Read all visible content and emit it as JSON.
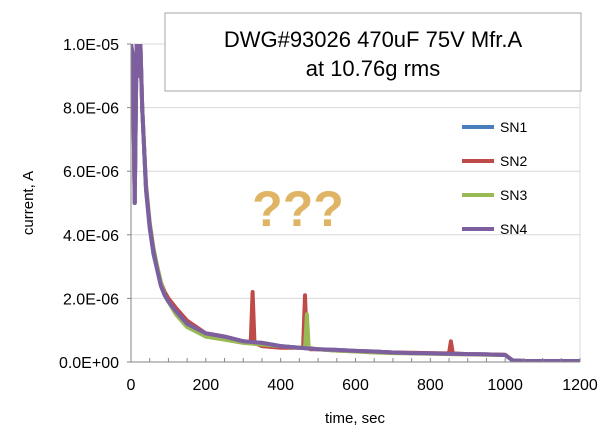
{
  "chart_data": {
    "type": "line",
    "title": "DWG#93026 470uF 75V Mfr.A",
    "subtitle": "at 10.76g rms",
    "xlabel": "time, sec",
    "ylabel": "current, A",
    "xlim": [
      0,
      1200
    ],
    "ylim": [
      0,
      1e-05
    ],
    "x_ticks": [
      0,
      200,
      400,
      600,
      800,
      1000,
      1200
    ],
    "x_tick_labels": [
      "0",
      "200",
      "400",
      "600",
      "800",
      "1000",
      "1200"
    ],
    "y_ticks": [
      0,
      2e-06,
      4e-06,
      6e-06,
      8e-06,
      1e-05
    ],
    "y_tick_labels": [
      "0.0E+00",
      "2.0E-06",
      "4.0E-06",
      "6.0E-06",
      "8.0E-06",
      "1.0E-05"
    ],
    "grid": "horizontal",
    "legend_position": "right",
    "annotation": "???",
    "series": [
      {
        "name": "SN1",
        "color": "#4a7ebb",
        "x": [
          0,
          5,
          10,
          15,
          20,
          25,
          30,
          40,
          50,
          60,
          70,
          80,
          90,
          100,
          120,
          150,
          200,
          250,
          300,
          350,
          400,
          450,
          500,
          550,
          600,
          650,
          700,
          750,
          800,
          850,
          900,
          950,
          1000,
          1020,
          1050,
          1100,
          1150,
          1200
        ],
        "y": [
          1e-05,
          9.6e-06,
          5e-06,
          1e-05,
          9e-06,
          1e-05,
          8e-06,
          5.4e-06,
          4.2e-06,
          3.4e-06,
          2.9e-06,
          2.4e-06,
          2.1e-06,
          1.9e-06,
          1.6e-06,
          1.2e-06,
          9e-07,
          8e-07,
          6.5e-07,
          6e-07,
          5e-07,
          4.5e-07,
          4e-07,
          3.8e-07,
          3.5e-07,
          3.3e-07,
          3e-07,
          2.8e-07,
          2.7e-07,
          2.6e-07,
          2.5e-07,
          2.4e-07,
          2.2e-07,
          5e-08,
          3e-08,
          3e-08,
          3e-08,
          3e-08
        ]
      },
      {
        "name": "SN2",
        "color": "#be4b48",
        "x": [
          0,
          5,
          10,
          15,
          20,
          25,
          30,
          40,
          50,
          60,
          70,
          80,
          90,
          100,
          120,
          150,
          200,
          250,
          300,
          320,
          325,
          330,
          340,
          350,
          400,
          450,
          460,
          465,
          470,
          480,
          500,
          550,
          600,
          650,
          700,
          750,
          800,
          850,
          855,
          860,
          900,
          950,
          1000,
          1020,
          1050,
          1100,
          1150,
          1200
        ],
        "y": [
          1e-05,
          9.6e-06,
          5e-06,
          1e-05,
          9e-06,
          1e-05,
          8e-06,
          5.5e-06,
          4.3e-06,
          3.5e-06,
          3e-06,
          2.5e-06,
          2.2e-06,
          2e-06,
          1.7e-06,
          1.3e-06,
          9e-07,
          8e-07,
          6.5e-07,
          6e-07,
          2.2e-06,
          6e-07,
          5.5e-07,
          5e-07,
          4.5e-07,
          4.5e-07,
          4.5e-07,
          2.1e-06,
          4.5e-07,
          4e-07,
          4e-07,
          3.6e-07,
          3.4e-07,
          3.2e-07,
          3e-07,
          2.9e-07,
          2.8e-07,
          2.7e-07,
          6.5e-07,
          2.7e-07,
          2.5e-07,
          2.4e-07,
          2.3e-07,
          5e-08,
          3e-08,
          3e-08,
          3e-08,
          3e-08
        ]
      },
      {
        "name": "SN3",
        "color": "#98b954",
        "x": [
          0,
          5,
          10,
          15,
          20,
          25,
          30,
          40,
          50,
          60,
          70,
          80,
          90,
          100,
          120,
          150,
          200,
          250,
          300,
          350,
          400,
          450,
          465,
          470,
          475,
          500,
          550,
          600,
          650,
          700,
          750,
          800,
          850,
          900,
          950,
          1000,
          1020,
          1050,
          1100,
          1150,
          1200
        ],
        "y": [
          1e-05,
          9.6e-06,
          5e-06,
          1e-05,
          9e-06,
          1e-05,
          8e-06,
          5.6e-06,
          4.4e-06,
          3.6e-06,
          3e-06,
          2.5e-06,
          2.1e-06,
          1.9e-06,
          1.5e-06,
          1.1e-06,
          8e-07,
          7e-07,
          6e-07,
          5.5e-07,
          5e-07,
          4.5e-07,
          4.5e-07,
          1.5e-06,
          4.5e-07,
          4e-07,
          3.6e-07,
          3.3e-07,
          3e-07,
          2.8e-07,
          2.7e-07,
          2.6e-07,
          2.5e-07,
          2.4e-07,
          2.3e-07,
          2.2e-07,
          5e-08,
          3e-08,
          3e-08,
          3e-08,
          3e-08
        ]
      },
      {
        "name": "SN4",
        "color": "#7d5fa0",
        "x": [
          0,
          5,
          10,
          15,
          20,
          25,
          30,
          40,
          50,
          60,
          70,
          80,
          90,
          100,
          120,
          150,
          200,
          250,
          300,
          350,
          400,
          450,
          500,
          550,
          600,
          650,
          700,
          750,
          800,
          850,
          900,
          950,
          1000,
          1020,
          1050,
          1100,
          1150,
          1200
        ],
        "y": [
          1e-05,
          9.6e-06,
          5e-06,
          1e-05,
          9e-06,
          1e-05,
          8e-06,
          5.5e-06,
          4.3e-06,
          3.5e-06,
          2.9e-06,
          2.4e-06,
          2.1e-06,
          1.9e-06,
          1.6e-06,
          1.2e-06,
          9e-07,
          8e-07,
          6.5e-07,
          6e-07,
          5e-07,
          4.5e-07,
          4e-07,
          3.8e-07,
          3.5e-07,
          3.3e-07,
          3e-07,
          2.8e-07,
          2.7e-07,
          2.6e-07,
          2.5e-07,
          2.4e-07,
          2.2e-07,
          5e-08,
          3e-08,
          3e-08,
          3e-08,
          3e-08
        ]
      }
    ]
  }
}
